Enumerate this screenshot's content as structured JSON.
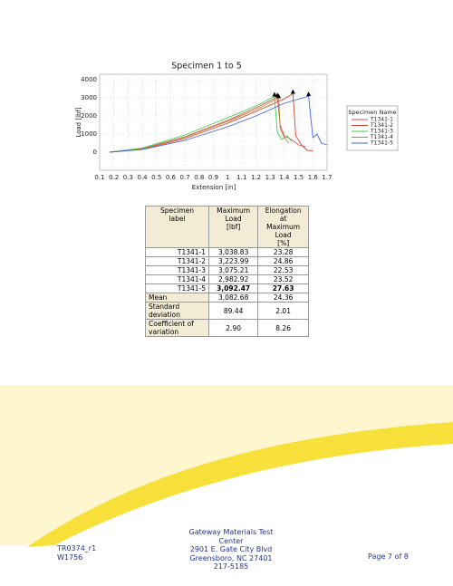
{
  "chart_data": {
    "type": "line",
    "title": "Specimen 1 to 5",
    "x_label": "Extension [in]",
    "y_label": "Load [lbf]",
    "xlim": [
      0.1,
      1.7
    ],
    "xticks": [
      0.1,
      0.2,
      0.3,
      0.4,
      0.5,
      0.6,
      0.7,
      0.8,
      0.9,
      1.0,
      1.1,
      1.2,
      1.3,
      1.4,
      1.5,
      1.6,
      1.7
    ],
    "ylim": [
      -1000,
      4000
    ],
    "yticks": [
      0,
      1000,
      2000,
      3000,
      4000
    ],
    "grid": true,
    "legend_title": "Specimen Name",
    "legend": "right",
    "series": [
      {
        "name": "T1341-1",
        "color": "#e5484d",
        "x": [
          0.17,
          0.4,
          0.7,
          1.0,
          1.2,
          1.35,
          1.37,
          1.4,
          1.45,
          1.5,
          1.55
        ],
        "values": [
          0,
          200,
          850,
          1750,
          2450,
          3039,
          1500,
          900,
          700,
          400,
          300
        ]
      },
      {
        "name": "T1341-2",
        "color": "#d2402c",
        "x": [
          0.17,
          0.4,
          0.7,
          1.0,
          1.2,
          1.4,
          1.46,
          1.48,
          1.52,
          1.56,
          1.6
        ],
        "values": [
          0,
          170,
          750,
          1600,
          2250,
          2950,
          3224,
          900,
          400,
          100,
          80
        ]
      },
      {
        "name": "T1341-3",
        "color": "#3ccf5a",
        "x": [
          0.17,
          0.4,
          0.7,
          1.0,
          1.2,
          1.33,
          1.35,
          1.38,
          1.42,
          1.45
        ],
        "values": [
          0,
          230,
          950,
          1900,
          2550,
          3075,
          1100,
          700,
          900,
          600
        ]
      },
      {
        "name": "T1341-4",
        "color": "#b58a2e",
        "x": [
          0.17,
          0.4,
          0.7,
          1.0,
          1.2,
          1.36,
          1.37,
          1.4,
          1.43
        ],
        "values": [
          0,
          190,
          820,
          1700,
          2350,
          2983,
          1300,
          800,
          500
        ]
      },
      {
        "name": "T1341-5",
        "color": "#4466dd",
        "x": [
          0.17,
          0.4,
          0.7,
          1.0,
          1.2,
          1.4,
          1.57,
          1.6,
          1.63,
          1.66,
          1.7
        ],
        "values": [
          0,
          150,
          650,
          1400,
          2000,
          2700,
          3092,
          800,
          1000,
          500,
          400
        ]
      }
    ]
  },
  "table": {
    "header": [
      [
        "Specimen",
        "label"
      ],
      [
        "Maximum Load",
        "[lbf]"
      ],
      [
        "Elongation at",
        "Maximum Load",
        "[%]"
      ]
    ],
    "rows": [
      [
        "T1341-1",
        "3,038.83",
        "23.28"
      ],
      [
        "T1341-2",
        "3,223.99",
        "24.86"
      ],
      [
        "T1341-3",
        "3,075.21",
        "22.53"
      ],
      [
        "T1341-4",
        "2,982.92",
        "23.52"
      ],
      [
        "T1341-5",
        "3,092.47",
        "27.63"
      ],
      [
        "Mean",
        "3,082.68",
        "24.36"
      ],
      [
        "Standard deviation",
        "89.44",
        "2.01"
      ],
      [
        "Coefficient of variation",
        "2.90",
        "8.26"
      ]
    ]
  },
  "footer": {
    "left": [
      "TR0374_r1",
      "W1756"
    ],
    "center": [
      "Gateway Materials Test Center",
      "2901 E. Gate City Blvd",
      "Greensboro, NC 27401",
      "217-5185"
    ],
    "right": "Page 7 of 8"
  }
}
